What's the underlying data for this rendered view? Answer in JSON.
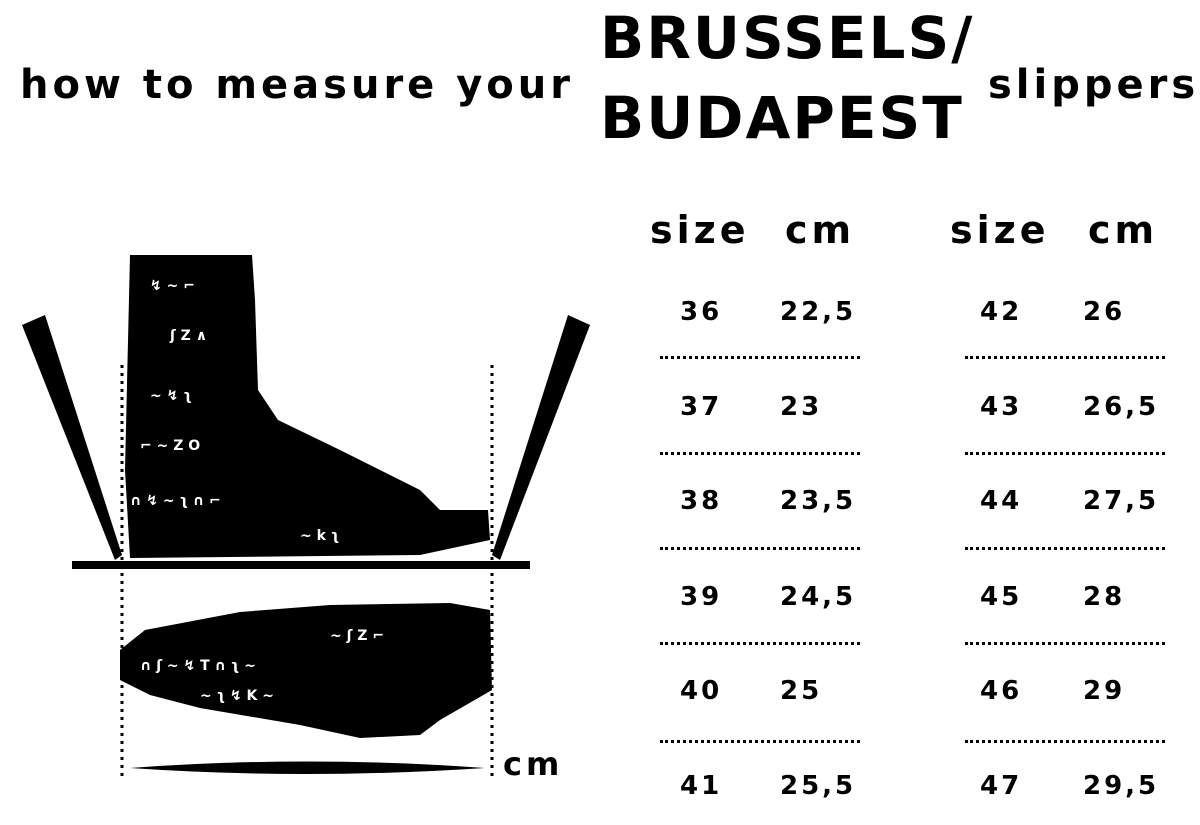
{
  "title": {
    "prefix": "how to measure your",
    "brand_line1": "BRUSSELS/",
    "brand_line2": "BUDAPEST",
    "suffix": "slippers"
  },
  "illustration": {
    "unit_label": "cm"
  },
  "tables": [
    {
      "headers": [
        "size",
        "cm"
      ],
      "rows": [
        [
          "36",
          "22,5"
        ],
        [
          "37",
          "23"
        ],
        [
          "38",
          "23,5"
        ],
        [
          "39",
          "24,5"
        ],
        [
          "40",
          "25"
        ],
        [
          "41",
          "25,5"
        ]
      ]
    },
    {
      "headers": [
        "size",
        "cm"
      ],
      "rows": [
        [
          "42",
          "26"
        ],
        [
          "43",
          "26,5"
        ],
        [
          "44",
          "27,5"
        ],
        [
          "45",
          "28"
        ],
        [
          "46",
          "29"
        ],
        [
          "47",
          "29,5"
        ]
      ]
    }
  ]
}
